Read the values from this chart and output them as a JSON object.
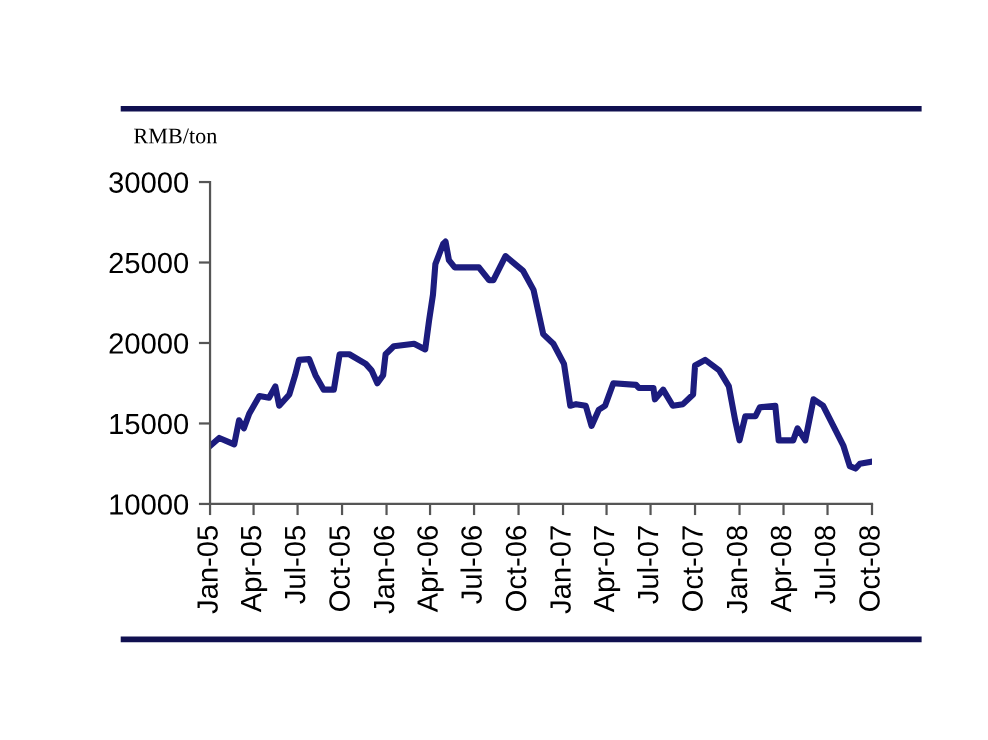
{
  "chart_data": {
    "type": "line",
    "ylabel": "RMB/ton",
    "x": [
      "2005-01-01",
      "2005-01-20",
      "2005-02-20",
      "2005-03-02",
      "2005-03-12",
      "2005-03-23",
      "2005-04-13",
      "2005-05-03",
      "2005-05-16",
      "2005-05-24",
      "2005-06-14",
      "2005-06-26",
      "2005-07-04",
      "2005-07-25",
      "2005-08-07",
      "2005-08-24",
      "2005-09-14",
      "2005-09-26",
      "2005-10-16",
      "2005-11-19",
      "2005-12-01",
      "2005-12-13",
      "2005-12-25",
      "2005-12-30",
      "2006-01-16",
      "2006-02-27",
      "2006-03-22",
      "2006-03-30",
      "2006-04-07",
      "2006-04-12",
      "2006-04-28",
      "2006-05-03",
      "2006-05-10",
      "2006-05-22",
      "2006-07-11",
      "2006-08-01",
      "2006-08-10",
      "2006-09-04",
      "2006-10-10",
      "2006-11-01",
      "2006-11-21",
      "2006-12-12",
      "2007-01-03",
      "2007-01-16",
      "2007-01-28",
      "2007-02-17",
      "2007-03-01",
      "2007-03-16",
      "2007-03-29",
      "2007-04-15",
      "2007-06-01",
      "2007-06-07",
      "2007-07-07",
      "2007-07-10",
      "2007-07-27",
      "2007-08-16",
      "2007-09-06",
      "2007-09-27",
      "2007-10-01",
      "2007-10-22",
      "2007-11-20",
      "2007-12-10",
      "2007-12-23",
      "2008-01-01",
      "2008-01-13",
      "2008-02-03",
      "2008-02-12",
      "2008-03-15",
      "2008-03-22",
      "2008-04-21",
      "2008-04-30",
      "2008-05-16",
      "2008-06-02",
      "2008-06-22",
      "2008-07-13",
      "2008-08-03",
      "2008-08-16",
      "2008-08-28",
      "2008-09-06",
      "2008-09-26"
    ],
    "series": [
      {
        "color": "#1c1c7e",
        "values": [
          13600,
          14100,
          13700,
          15200,
          14700,
          15600,
          16700,
          16600,
          17300,
          16100,
          16800,
          18000,
          18950,
          19000,
          18000,
          17100,
          17100,
          19300,
          19300,
          18700,
          18300,
          17500,
          18000,
          19300,
          19800,
          19950,
          19600,
          21400,
          23000,
          24900,
          26150,
          26300,
          25150,
          24700,
          24700,
          23900,
          23900,
          25400,
          24500,
          23300,
          20550,
          19950,
          18700,
          16100,
          16200,
          16100,
          14850,
          15850,
          16100,
          17500,
          17400,
          17200,
          17200,
          16500,
          17100,
          16100,
          16200,
          16800,
          18600,
          18950,
          18300,
          17300,
          15200,
          13950,
          15450,
          15450,
          16000,
          16100,
          13950,
          13950,
          14700,
          13950,
          16500,
          16100,
          14850,
          13600,
          12350,
          12200,
          12500,
          12600
        ]
      }
    ],
    "xlim": [
      "2005-01-01",
      "2008-10-01"
    ],
    "xticks": [
      {
        "value": "2005-01-01",
        "label": "Jan-05"
      },
      {
        "value": "2005-04-01",
        "label": "Apr-05"
      },
      {
        "value": "2005-07-01",
        "label": "Jul-05"
      },
      {
        "value": "2005-10-01",
        "label": "Oct-05"
      },
      {
        "value": "2006-01-01",
        "label": "Jan-06"
      },
      {
        "value": "2006-04-01",
        "label": "Apr-06"
      },
      {
        "value": "2006-07-01",
        "label": "Jul-06"
      },
      {
        "value": "2006-10-01",
        "label": "Oct-06"
      },
      {
        "value": "2007-01-01",
        "label": "Jan-07"
      },
      {
        "value": "2007-04-01",
        "label": "Apr-07"
      },
      {
        "value": "2007-07-01",
        "label": "Jul-07"
      },
      {
        "value": "2007-10-01",
        "label": "Oct-07"
      },
      {
        "value": "2008-01-01",
        "label": "Jan-08"
      },
      {
        "value": "2008-04-01",
        "label": "Apr-08"
      },
      {
        "value": "2008-07-01",
        "label": "Jul-08"
      },
      {
        "value": "2008-10-01",
        "label": "Oct-08"
      }
    ],
    "ylim": [
      10000,
      30000
    ],
    "yticks": [
      10000,
      15000,
      20000,
      25000,
      30000
    ],
    "grid": false,
    "legend": false,
    "marker": "none",
    "line_style": "solid"
  }
}
